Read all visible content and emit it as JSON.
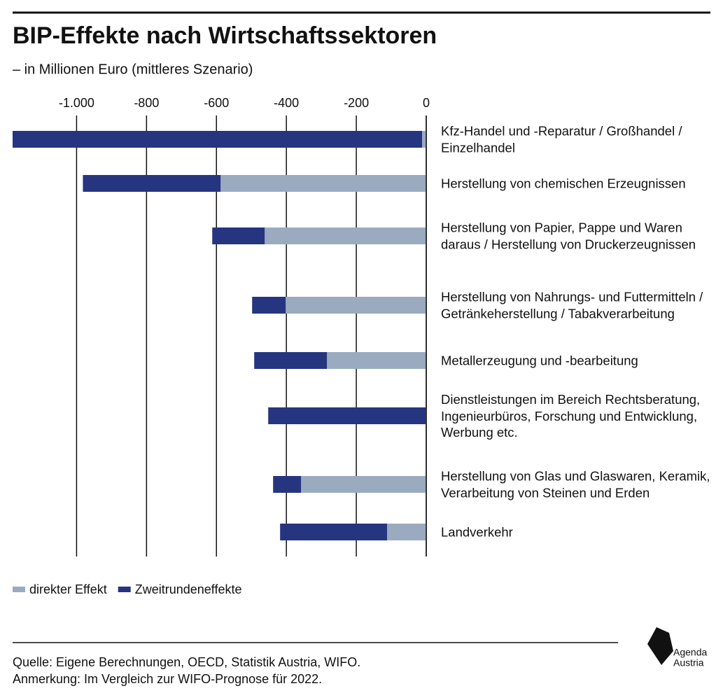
{
  "chart_data": {
    "type": "stacked-barh",
    "title": "BIP-Effekte nach Wirtschaftssektoren",
    "subtitle": "– in Millionen Euro (mittleres Szenario)",
    "categories": [
      "Kfz-Handel und -Reparatur / Großhandel / Einzelhandel",
      "Herstellung von chemischen Erzeugnissen",
      "Herstellung von Papier, Pappe und Waren daraus / Herstellung von Druckerzeugnissen",
      "Herstellung von Nahrungs- und Futtermitteln / Getränkeherstellung / Tabakverarbeitung",
      "Metallerzeugung und -bearbeitung",
      "Dienstleistungen im Bereich Rechtsberatung, Ingenieurbüros, Forschung und Entwicklung, Werbung etc.",
      "Herstellung von Glas und Glaswaren, Keramik, Verarbeitung von Steinen und Erden",
      "Landverkehr"
    ],
    "series": [
      {
        "name": "direkter Effekt",
        "color": "#9aabc0",
        "values": [
          -12,
          -588,
          -462,
          -402,
          -284,
          -2,
          -358,
          -112
        ]
      },
      {
        "name": "Zweitrundeneffekte",
        "color": "#263580",
        "values": [
          -1171,
          -394,
          -150,
          -96,
          -208,
          -450,
          -80,
          -306
        ]
      }
    ],
    "xlim": [
      -1185,
      0
    ],
    "xticks": [
      {
        "value": -1000,
        "label": "-1.000"
      },
      -800,
      -600,
      -400,
      -200,
      0
    ],
    "grid": true,
    "legend": "bottom-left",
    "source": "Quelle: Eigene Berechnungen, OECD, Statistik Austria, WIFO.",
    "note": "Anmerkung: Im Vergleich zur WIFO-Prognose für 2022.",
    "logo": [
      "Agenda",
      "Austria"
    ]
  }
}
